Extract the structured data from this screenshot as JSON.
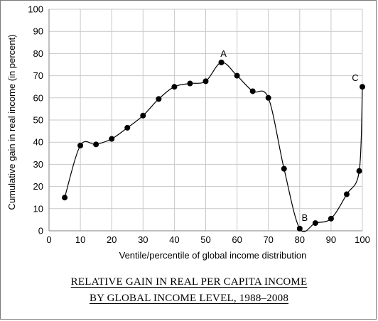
{
  "chart_data": {
    "type": "line",
    "title": "RELATIVE GAIN IN REAL PER CAPITA INCOME BY GLOBAL INCOME LEVEL, 1988–2008",
    "title_lines": [
      "RELATIVE GAIN IN REAL PER CAPITA INCOME",
      "BY GLOBAL INCOME LEVEL, 1988–2008"
    ],
    "xlabel": "Ventile/percentile of global income distribution",
    "ylabel": "Cumulative gain in real income (in percent)",
    "xlim": [
      0,
      100
    ],
    "ylim": [
      0,
      100
    ],
    "xticks": [
      0,
      10,
      20,
      30,
      40,
      50,
      60,
      70,
      80,
      90,
      100
    ],
    "yticks": [
      0,
      10,
      20,
      30,
      40,
      50,
      60,
      70,
      80,
      90,
      100
    ],
    "grid": true,
    "series": [
      {
        "x": [
          5,
          10,
          15,
          20,
          25,
          30,
          35,
          40,
          45,
          50,
          55,
          60,
          65,
          70,
          75,
          80,
          85,
          90,
          95,
          99,
          100
        ],
        "values": [
          15,
          38.5,
          39,
          41.5,
          46.5,
          52,
          59.5,
          65,
          66.5,
          67.5,
          76,
          70,
          63,
          60,
          28,
          1,
          3.5,
          5.5,
          16.5,
          27,
          65
        ]
      }
    ],
    "annotations": [
      {
        "label": "A",
        "x": 55,
        "y": 76
      },
      {
        "label": "B",
        "x": 80,
        "y": 1
      },
      {
        "label": "C",
        "x": 100,
        "y": 65
      }
    ]
  },
  "style": {
    "line_color": "#000000",
    "marker_color": "#000000",
    "grid_color": "#c8c8c8",
    "axis_color": "#808080"
  }
}
